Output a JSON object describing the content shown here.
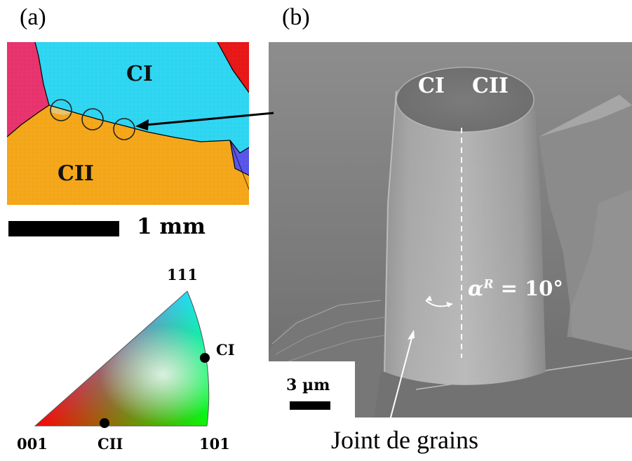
{
  "panel_a": {
    "label": "(a)",
    "map_labels": {
      "ci": "CI",
      "cii": "CII"
    },
    "scale_bar_label": "1 mm",
    "ipf": {
      "corner_111": "111",
      "corner_001": "001",
      "corner_101": "101",
      "point_ci": "CI",
      "point_cii": "CII"
    },
    "colors": {
      "ci_grain": "#2fd6f2",
      "cii_grain": "#f5a71a",
      "left_grain": "#e8336e",
      "right_top_grain": "#e81818",
      "right_bottom_grain": "#5a56ea"
    }
  },
  "panel_b": {
    "label": "(b)",
    "pillar_labels": {
      "ci": "CI",
      "cii": "CII"
    },
    "angle_label": "αR = 10°",
    "angle_alpha": "α",
    "angle_sup": "R",
    "angle_rest": " = 10°",
    "scale_bar_label": "3 µm",
    "caption": "Joint de grains"
  }
}
